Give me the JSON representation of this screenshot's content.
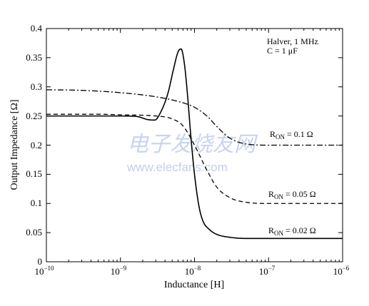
{
  "chart_data": {
    "type": "line",
    "xlabel": "Inductance [H]",
    "ylabel": "Output Impedance [Ω]",
    "xscale": "log",
    "xlim": [
      1e-10,
      1e-06
    ],
    "ylim": [
      0,
      0.4
    ],
    "x_ticks": [
      {
        "base": "10",
        "exp": "−10"
      },
      {
        "base": "10",
        "exp": "−9"
      },
      {
        "base": "10",
        "exp": "−8"
      },
      {
        "base": "10",
        "exp": "−7"
      },
      {
        "base": "10",
        "exp": "−6"
      }
    ],
    "y_ticks": [
      "0",
      "0.05",
      "0.1",
      "0.15",
      "0.2",
      "0.25",
      "0.3",
      "0.35",
      "0.4"
    ],
    "grid": false,
    "annotation": {
      "line1": "Halver, 1 MHz",
      "line2": "C = 1 μF"
    },
    "series": [
      {
        "style": "dashdot",
        "label": {
          "main": "R",
          "sub": "ON",
          "rest": " = 0.1 Ω"
        },
        "x": [
          1e-10,
          3e-10,
          1e-09,
          3e-09,
          6e-09,
          1e-08,
          1.5e-08,
          2e-08,
          3e-08,
          5e-08,
          1e-07,
          1e-06
        ],
        "y": [
          0.295,
          0.294,
          0.29,
          0.283,
          0.275,
          0.265,
          0.249,
          0.232,
          0.212,
          0.202,
          0.2,
          0.2
        ]
      },
      {
        "style": "dashed",
        "label": {
          "main": "R",
          "sub": "ON",
          "rest": " = 0.05 Ω"
        },
        "x": [
          1e-10,
          5e-10,
          1e-09,
          3e-09,
          5e-09,
          7e-09,
          1e-08,
          1.5e-08,
          2e-08,
          3e-08,
          5e-08,
          1e-07,
          1e-06
        ],
        "y": [
          0.253,
          0.253,
          0.252,
          0.25,
          0.245,
          0.233,
          0.2,
          0.155,
          0.128,
          0.11,
          0.102,
          0.1,
          0.1
        ]
      },
      {
        "style": "solid",
        "label": {
          "main": "R",
          "sub": "ON",
          "rest": " = 0.02 Ω"
        },
        "x": [
          1e-10,
          1e-09,
          1.7e-09,
          2.3e-09,
          2.9e-09,
          3.6e-09,
          4.4e-09,
          5.2e-09,
          6e-09,
          6.6e-09,
          7.3e-09,
          8e-09,
          9e-09,
          1e-08,
          1.15e-08,
          1.3e-08,
          1.6e-08,
          2e-08,
          3e-08,
          5e-08,
          1e-07,
          1e-06
        ],
        "y": [
          0.25,
          0.25,
          0.249,
          0.244,
          0.243,
          0.26,
          0.29,
          0.33,
          0.36,
          0.365,
          0.34,
          0.29,
          0.21,
          0.15,
          0.095,
          0.07,
          0.055,
          0.047,
          0.042,
          0.04,
          0.04,
          0.04
        ]
      }
    ]
  },
  "watermark": {
    "cn": "电子发烧友网",
    "url": "www.elecfans.com"
  }
}
